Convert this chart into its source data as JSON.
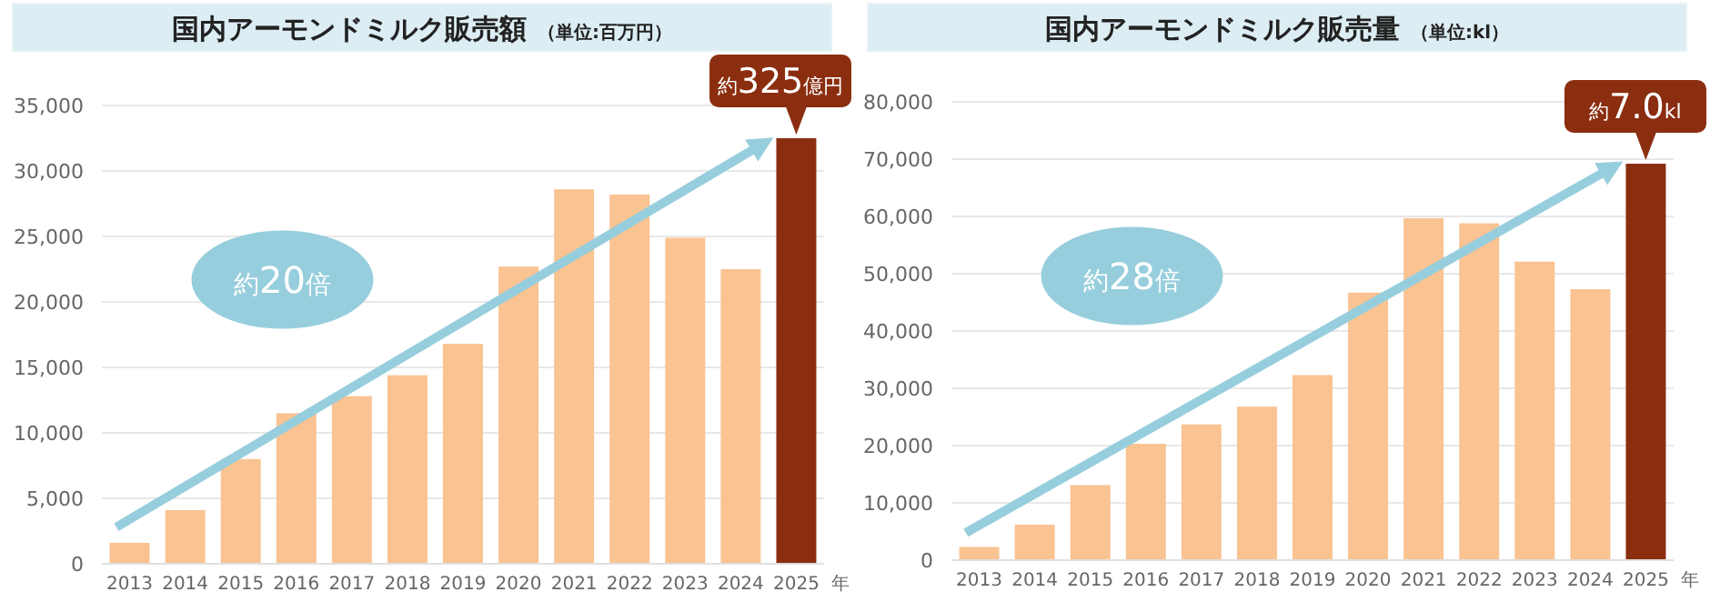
{
  "chart_data": [
    {
      "type": "bar",
      "title": "国内アーモンドミルク販売額",
      "subtitle": "（単位:百万円）",
      "xlabel": "年",
      "categories": [
        "2013",
        "2014",
        "2015",
        "2016",
        "2017",
        "2018",
        "2019",
        "2020",
        "2021",
        "2022",
        "2023",
        "2024",
        "2025"
      ],
      "values": [
        1600,
        4100,
        8000,
        11500,
        12800,
        14400,
        16800,
        22700,
        28600,
        28200,
        24900,
        22500,
        32500
      ],
      "colors": [
        "#f9c392",
        "#f9c392",
        "#f9c392",
        "#f9c392",
        "#f9c392",
        "#f9c392",
        "#f9c392",
        "#f9c392",
        "#f9c392",
        "#f9c392",
        "#f9c392",
        "#f9c392",
        "#8b2e10"
      ],
      "ylim": [
        0,
        35000
      ],
      "yticks": [
        {
          "value": 0,
          "label": "0"
        },
        {
          "value": 5000,
          "label": "5,000"
        },
        {
          "value": 10000,
          "label": "10,000"
        },
        {
          "value": 15000,
          "label": "15,000"
        },
        {
          "value": 20000,
          "label": "20,000"
        },
        {
          "value": 25000,
          "label": "25,000"
        },
        {
          "value": 30000,
          "label": "30,000"
        },
        {
          "value": 35000,
          "label": "35,000"
        }
      ],
      "grid": "y",
      "annotations": [
        "約20倍",
        {
          "text": "約325億円",
          "x": "2025",
          "y": 32500
        }
      ]
    },
    {
      "type": "bar",
      "title": "国内アーモンドミルク販売量",
      "subtitle": "（単位:kl）",
      "xlabel": "年",
      "categories": [
        "2013",
        "2014",
        "2015",
        "2016",
        "2017",
        "2018",
        "2019",
        "2020",
        "2021",
        "2022",
        "2023",
        "2024",
        "2025"
      ],
      "values": [
        2300,
        6200,
        13100,
        20300,
        23700,
        26800,
        32300,
        46700,
        59700,
        58800,
        52100,
        47300,
        69200
      ],
      "colors": [
        "#f9c392",
        "#f9c392",
        "#f9c392",
        "#f9c392",
        "#f9c392",
        "#f9c392",
        "#f9c392",
        "#f9c392",
        "#f9c392",
        "#f9c392",
        "#f9c392",
        "#f9c392",
        "#8b2e10"
      ],
      "ylim": [
        0,
        80000
      ],
      "yticks": [
        {
          "value": 0,
          "label": "0"
        },
        {
          "value": 10000,
          "label": "10,000"
        },
        {
          "value": 20000,
          "label": "20,000"
        },
        {
          "value": 30000,
          "label": "30,000"
        },
        {
          "value": 40000,
          "label": "40,000"
        },
        {
          "value": 50000,
          "label": "50,000"
        },
        {
          "value": 60000,
          "label": "60,000"
        },
        {
          "value": 70000,
          "label": "70,000"
        },
        {
          "value": 80000,
          "label": "80,000"
        }
      ],
      "grid": "y",
      "annotations": [
        "約28倍",
        {
          "text": "約7.0kl",
          "x": "2025",
          "y": 69200
        }
      ]
    }
  ]
}
